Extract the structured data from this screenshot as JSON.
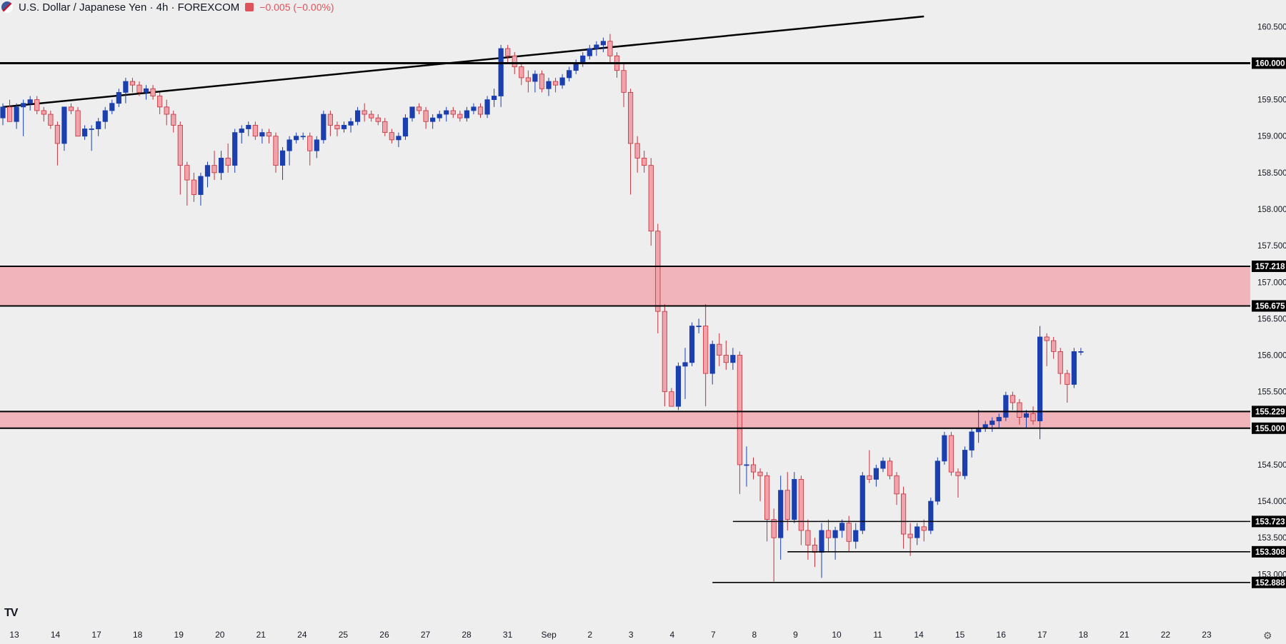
{
  "header": {
    "symbol": "U.S. Dollar / Japanese Yen · 4h · FOREXCOM",
    "change": "−0.005 (−0.00%)",
    "flag_icon": "us-jp-flag-icon"
  },
  "branding": {
    "logo": "TV"
  },
  "colors": {
    "background": "#eeeeee",
    "up": "#1b3fae",
    "down": "#f0a3aa",
    "down_border": "#c4303a",
    "zone_fill": "#f1b4ba",
    "line": "#000000"
  },
  "chart_data": {
    "type": "candlestick",
    "title": "U.S. Dollar / Japanese Yen · 4h · FOREXCOM",
    "ylim": [
      152.7,
      160.65
    ],
    "y_ticks": [
      "160.500",
      "160.000",
      "159.500",
      "159.000",
      "158.500",
      "158.000",
      "157.500",
      "157.000",
      "156.500",
      "156.000",
      "155.500",
      "155.000",
      "154.500",
      "154.000",
      "153.500",
      "153.000"
    ],
    "x_ticks": [
      "13",
      "14",
      "17",
      "18",
      "19",
      "20",
      "21",
      "24",
      "25",
      "26",
      "27",
      "28",
      "31",
      "Sep",
      "2",
      "3",
      "4",
      "7",
      "8",
      "9",
      "10",
      "11",
      "14",
      "15",
      "16",
      "17",
      "18",
      "21",
      "22",
      "23"
    ],
    "price_labels": [
      {
        "value": 160.0,
        "label": "160.000"
      },
      {
        "value": 157.218,
        "label": "157.218"
      },
      {
        "value": 156.675,
        "label": "156.675"
      },
      {
        "value": 155.229,
        "label": "155.229"
      },
      {
        "value": 155.0,
        "label": "155.000"
      },
      {
        "value": 153.723,
        "label": "153.723"
      },
      {
        "value": 153.308,
        "label": "153.308"
      },
      {
        "value": 152.888,
        "label": "152.888"
      }
    ],
    "zones": [
      {
        "low": 156.675,
        "high": 157.218
      },
      {
        "low": 155.0,
        "high": 155.229
      }
    ],
    "horizontal_lines": [
      {
        "value": 160.0,
        "from_index": 0
      },
      {
        "value": 153.723,
        "from_index": 107
      },
      {
        "value": 153.308,
        "from_index": 115
      },
      {
        "value": 152.888,
        "from_index": 104
      }
    ],
    "trendline": {
      "from": {
        "index": 0,
        "value": 159.4
      },
      "to": {
        "index": 135,
        "value": 160.64
      }
    },
    "candles": [
      [
        159.25,
        159.45,
        159.15,
        159.4
      ],
      [
        159.4,
        159.5,
        159.2,
        159.2
      ],
      [
        159.2,
        159.45,
        159.1,
        159.4
      ],
      [
        159.4,
        159.5,
        159.0,
        159.45
      ],
      [
        159.45,
        159.55,
        159.35,
        159.5
      ],
      [
        159.5,
        159.55,
        159.3,
        159.35
      ],
      [
        159.35,
        159.4,
        159.2,
        159.3
      ],
      [
        159.3,
        159.35,
        159.1,
        159.15
      ],
      [
        159.15,
        159.2,
        158.6,
        158.9
      ],
      [
        158.9,
        159.4,
        158.8,
        159.4
      ],
      [
        159.4,
        159.45,
        159.3,
        159.35
      ],
      [
        159.35,
        159.4,
        159.0,
        159.0
      ],
      [
        159.0,
        159.15,
        158.95,
        159.1
      ],
      [
        159.1,
        159.15,
        158.8,
        159.1
      ],
      [
        159.1,
        159.25,
        159.0,
        159.2
      ],
      [
        159.2,
        159.4,
        159.1,
        159.35
      ],
      [
        159.35,
        159.5,
        159.3,
        159.45
      ],
      [
        159.45,
        159.65,
        159.4,
        159.6
      ],
      [
        159.6,
        159.8,
        159.45,
        159.75
      ],
      [
        159.75,
        159.8,
        159.6,
        159.7
      ],
      [
        159.7,
        159.75,
        159.55,
        159.6
      ],
      [
        159.6,
        159.7,
        159.5,
        159.65
      ],
      [
        159.65,
        159.7,
        159.5,
        159.55
      ],
      [
        159.55,
        159.6,
        159.3,
        159.4
      ],
      [
        159.4,
        159.5,
        159.15,
        159.3
      ],
      [
        159.3,
        159.35,
        159.05,
        159.15
      ],
      [
        159.15,
        159.2,
        158.2,
        158.6
      ],
      [
        158.6,
        158.65,
        158.05,
        158.4
      ],
      [
        158.4,
        158.5,
        158.1,
        158.2
      ],
      [
        158.2,
        158.5,
        158.05,
        158.45
      ],
      [
        158.45,
        158.65,
        158.3,
        158.6
      ],
      [
        158.6,
        158.8,
        158.4,
        158.5
      ],
      [
        158.5,
        158.8,
        158.4,
        158.7
      ],
      [
        158.7,
        158.9,
        158.5,
        158.6
      ],
      [
        158.6,
        159.1,
        158.5,
        159.05
      ],
      [
        159.05,
        159.15,
        158.9,
        159.1
      ],
      [
        159.1,
        159.2,
        159.0,
        159.15
      ],
      [
        159.15,
        159.2,
        158.95,
        159.0
      ],
      [
        159.0,
        159.1,
        158.9,
        159.05
      ],
      [
        159.05,
        159.1,
        158.9,
        159.0
      ],
      [
        159.0,
        159.05,
        158.5,
        158.6
      ],
      [
        158.6,
        158.85,
        158.4,
        158.8
      ],
      [
        158.8,
        159.0,
        158.6,
        158.95
      ],
      [
        158.95,
        159.05,
        158.9,
        159.0
      ],
      [
        159.0,
        159.05,
        158.95,
        159.0
      ],
      [
        159.0,
        159.05,
        158.6,
        158.8
      ],
      [
        158.8,
        159.0,
        158.7,
        158.95
      ],
      [
        158.95,
        159.35,
        158.9,
        159.3
      ],
      [
        159.3,
        159.35,
        159.0,
        159.15
      ],
      [
        159.15,
        159.2,
        159.0,
        159.1
      ],
      [
        159.1,
        159.2,
        159.05,
        159.15
      ],
      [
        159.15,
        159.25,
        159.05,
        159.2
      ],
      [
        159.2,
        159.4,
        159.15,
        159.35
      ],
      [
        159.35,
        159.45,
        159.2,
        159.3
      ],
      [
        159.3,
        159.35,
        159.2,
        159.25
      ],
      [
        159.25,
        159.3,
        159.15,
        159.2
      ],
      [
        159.2,
        159.25,
        159.0,
        159.05
      ],
      [
        159.05,
        159.1,
        158.9,
        158.95
      ],
      [
        158.95,
        159.05,
        158.85,
        159.0
      ],
      [
        159.0,
        159.3,
        158.95,
        159.25
      ],
      [
        159.25,
        159.4,
        159.2,
        159.4
      ],
      [
        159.4,
        159.45,
        159.3,
        159.35
      ],
      [
        159.35,
        159.4,
        159.1,
        159.2
      ],
      [
        159.2,
        159.3,
        159.1,
        159.25
      ],
      [
        159.25,
        159.35,
        159.2,
        159.3
      ],
      [
        159.3,
        159.4,
        159.2,
        159.35
      ],
      [
        159.35,
        159.4,
        159.25,
        159.3
      ],
      [
        159.3,
        159.35,
        159.2,
        159.25
      ],
      [
        159.25,
        159.4,
        159.2,
        159.35
      ],
      [
        159.35,
        159.45,
        159.3,
        159.4
      ],
      [
        159.4,
        159.45,
        159.25,
        159.3
      ],
      [
        159.3,
        159.55,
        159.25,
        159.5
      ],
      [
        159.5,
        159.65,
        159.4,
        159.55
      ],
      [
        159.55,
        160.25,
        159.4,
        160.2
      ],
      [
        160.2,
        160.25,
        160.0,
        160.1
      ],
      [
        160.1,
        160.15,
        159.85,
        159.95
      ],
      [
        159.95,
        160.0,
        159.7,
        159.8
      ],
      [
        159.8,
        159.9,
        159.6,
        159.75
      ],
      [
        159.75,
        159.9,
        159.6,
        159.85
      ],
      [
        159.85,
        159.9,
        159.6,
        159.65
      ],
      [
        159.65,
        159.8,
        159.55,
        159.75
      ],
      [
        159.75,
        159.8,
        159.6,
        159.7
      ],
      [
        159.7,
        159.85,
        159.65,
        159.8
      ],
      [
        159.8,
        159.95,
        159.75,
        159.9
      ],
      [
        159.9,
        160.05,
        159.85,
        160.0
      ],
      [
        160.0,
        160.15,
        159.95,
        160.1
      ],
      [
        160.1,
        160.25,
        160.05,
        160.2
      ],
      [
        160.2,
        160.3,
        160.1,
        160.25
      ],
      [
        160.25,
        160.35,
        160.15,
        160.3
      ],
      [
        160.3,
        160.4,
        160.0,
        160.1
      ],
      [
        160.1,
        160.15,
        159.8,
        159.9
      ],
      [
        159.9,
        160.0,
        159.4,
        159.6
      ],
      [
        159.6,
        159.65,
        158.2,
        158.9
      ],
      [
        158.9,
        159.0,
        158.5,
        158.7
      ],
      [
        158.7,
        158.8,
        158.5,
        158.6
      ],
      [
        158.6,
        158.7,
        157.5,
        157.7
      ],
      [
        157.7,
        157.8,
        156.3,
        156.6
      ],
      [
        156.6,
        156.7,
        155.3,
        155.5
      ],
      [
        155.5,
        155.55,
        155.3,
        155.3
      ],
      [
        155.3,
        155.9,
        155.25,
        155.85
      ],
      [
        155.85,
        156.1,
        155.4,
        155.9
      ],
      [
        155.9,
        156.45,
        155.85,
        156.4
      ],
      [
        156.4,
        156.5,
        156.3,
        156.4
      ],
      [
        156.4,
        156.7,
        155.3,
        155.75
      ],
      [
        155.75,
        156.2,
        155.6,
        156.15
      ],
      [
        156.15,
        156.3,
        155.85,
        156.0
      ],
      [
        156.0,
        156.2,
        155.8,
        155.9
      ],
      [
        155.9,
        156.1,
        155.8,
        156.0
      ],
      [
        156.0,
        156.05,
        154.1,
        154.5
      ],
      [
        154.5,
        154.75,
        154.2,
        154.5
      ],
      [
        154.5,
        154.6,
        154.3,
        154.4
      ],
      [
        154.4,
        154.45,
        154.0,
        154.35
      ],
      [
        154.35,
        154.4,
        153.45,
        153.75
      ],
      [
        153.75,
        153.9,
        152.9,
        153.5
      ],
      [
        153.5,
        154.35,
        153.2,
        154.15
      ],
      [
        154.15,
        154.4,
        153.6,
        153.75
      ],
      [
        153.75,
        154.4,
        153.7,
        154.3
      ],
      [
        154.3,
        154.35,
        153.4,
        153.6
      ],
      [
        153.6,
        153.75,
        153.2,
        153.4
      ],
      [
        153.4,
        153.5,
        153.1,
        153.3
      ],
      [
        153.3,
        153.7,
        152.95,
        153.6
      ],
      [
        153.6,
        153.75,
        153.3,
        153.5
      ],
      [
        153.5,
        153.65,
        153.2,
        153.6
      ],
      [
        153.6,
        153.75,
        153.5,
        153.7
      ],
      [
        153.7,
        153.8,
        153.3,
        153.45
      ],
      [
        153.45,
        153.7,
        153.35,
        153.6
      ],
      [
        153.6,
        154.4,
        153.55,
        154.35
      ],
      [
        154.35,
        154.7,
        154.25,
        154.3
      ],
      [
        154.3,
        154.5,
        154.2,
        154.45
      ],
      [
        154.45,
        154.6,
        154.4,
        154.55
      ],
      [
        154.55,
        154.6,
        154.3,
        154.35
      ],
      [
        154.35,
        154.4,
        153.95,
        154.1
      ],
      [
        154.1,
        154.2,
        153.35,
        153.55
      ],
      [
        153.55,
        153.7,
        153.25,
        153.5
      ],
      [
        153.5,
        153.7,
        153.4,
        153.65
      ],
      [
        153.65,
        153.75,
        153.45,
        153.6
      ],
      [
        153.6,
        154.05,
        153.55,
        154.0
      ],
      [
        154.0,
        154.6,
        153.95,
        154.55
      ],
      [
        154.55,
        154.95,
        154.5,
        154.9
      ],
      [
        154.9,
        154.95,
        154.35,
        154.4
      ],
      [
        154.4,
        154.45,
        154.05,
        154.35
      ],
      [
        154.35,
        154.75,
        154.3,
        154.7
      ],
      [
        154.7,
        155.0,
        154.6,
        154.95
      ],
      [
        154.95,
        155.25,
        154.8,
        155.0
      ],
      [
        155.0,
        155.1,
        154.95,
        155.05
      ],
      [
        155.05,
        155.15,
        154.95,
        155.1
      ],
      [
        155.1,
        155.2,
        155.0,
        155.15
      ],
      [
        155.15,
        155.5,
        155.1,
        155.45
      ],
      [
        155.45,
        155.5,
        155.25,
        155.35
      ],
      [
        155.35,
        155.4,
        155.05,
        155.15
      ],
      [
        155.15,
        155.25,
        155.0,
        155.2
      ],
      [
        155.2,
        155.3,
        155.05,
        155.1
      ],
      [
        155.1,
        156.4,
        154.85,
        156.25
      ],
      [
        156.25,
        156.3,
        155.85,
        156.2
      ],
      [
        156.2,
        156.25,
        155.95,
        156.05
      ],
      [
        156.05,
        156.1,
        155.6,
        155.75
      ],
      [
        155.75,
        155.8,
        155.35,
        155.6
      ],
      [
        155.6,
        156.1,
        155.55,
        156.05
      ],
      [
        156.05,
        156.1,
        156.0,
        156.05
      ]
    ],
    "grid": false
  }
}
